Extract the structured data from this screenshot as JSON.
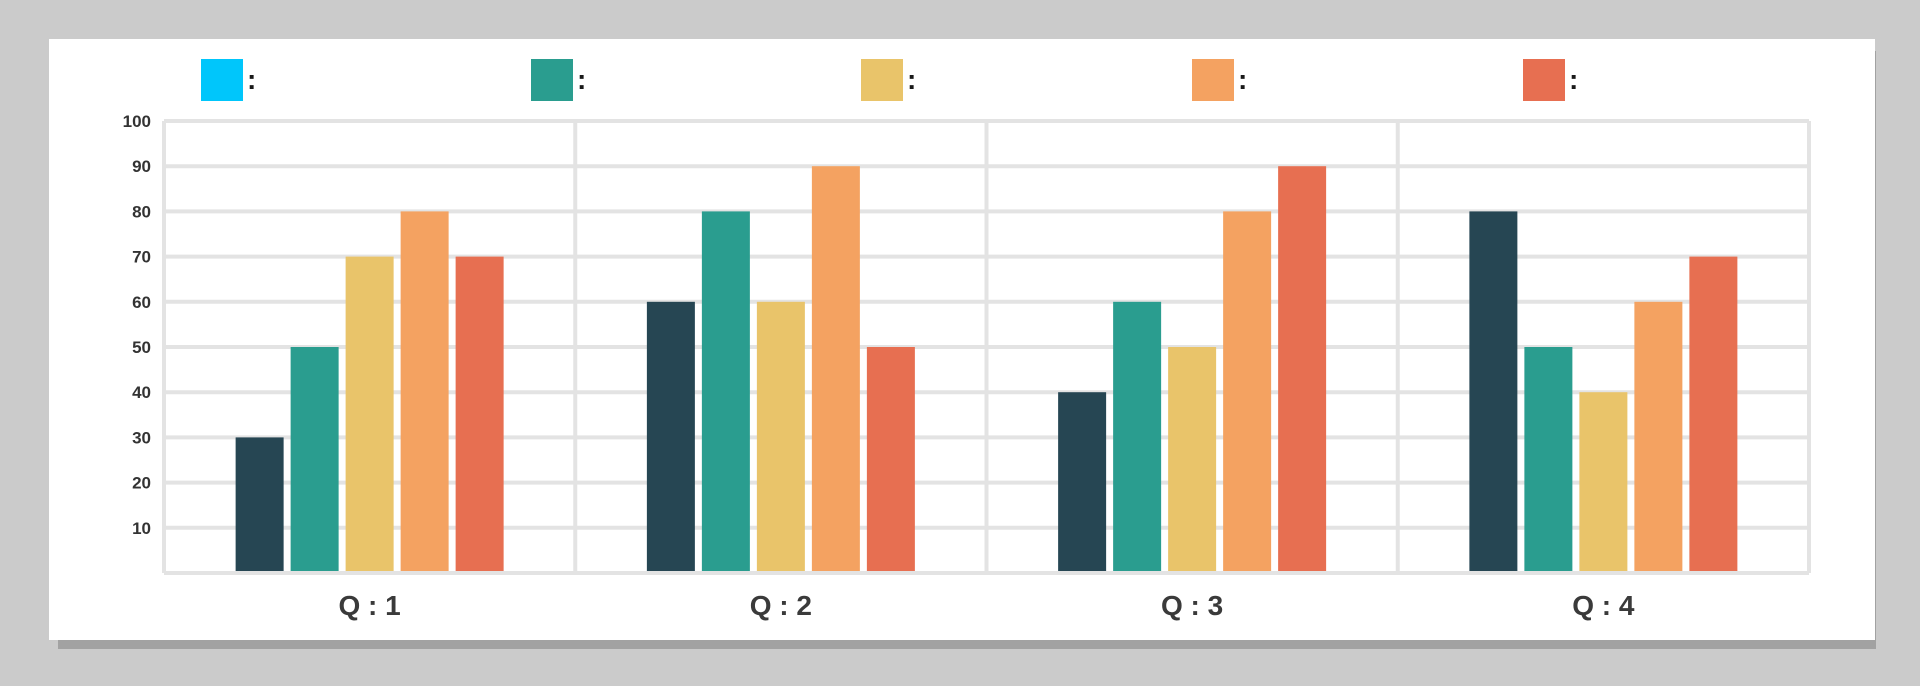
{
  "legend": [
    {
      "color": "#00c6fb",
      "text": ":"
    },
    {
      "color": "#2a9d8f",
      "text": ":"
    },
    {
      "color": "#e9c46a",
      "text": ":"
    },
    {
      "color": "#f4a261",
      "text": ":"
    },
    {
      "color": "#e76f51",
      "text": ":"
    }
  ],
  "chart_data": {
    "type": "bar",
    "categories": [
      "Q : 1",
      "Q : 2",
      "Q : 3",
      "Q : 4"
    ],
    "series": [
      {
        "color": "#264653",
        "values": [
          30,
          60,
          40,
          80
        ]
      },
      {
        "color": "#2a9d8f",
        "values": [
          50,
          80,
          60,
          50
        ]
      },
      {
        "color": "#e9c46a",
        "values": [
          70,
          60,
          50,
          40
        ]
      },
      {
        "color": "#f4a261",
        "values": [
          80,
          90,
          80,
          60
        ]
      },
      {
        "color": "#e76f51",
        "values": [
          70,
          50,
          90,
          70
        ]
      }
    ],
    "yticks": [
      10,
      20,
      30,
      40,
      50,
      60,
      70,
      80,
      90,
      100
    ],
    "ylim": [
      0,
      100
    ],
    "grid": true,
    "legend_position": "top"
  }
}
